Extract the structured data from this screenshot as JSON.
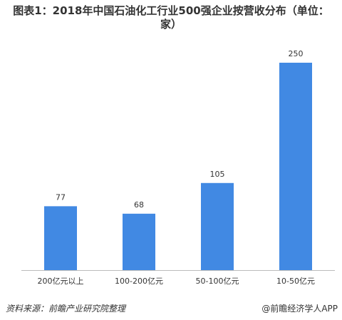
{
  "chart_data": {
    "type": "bar",
    "title": "图表1：2018年中国石油化工行业500强企业按营收分布（单位：家）",
    "categories": [
      "200亿元以上",
      "100-200亿元",
      "50-100亿元",
      "10-50亿元"
    ],
    "values": [
      77,
      68,
      105,
      250
    ],
    "color": "#4189e3",
    "source": "资料来源：前瞻产业研究院整理",
    "credit": "@前瞻经济学人APP"
  }
}
